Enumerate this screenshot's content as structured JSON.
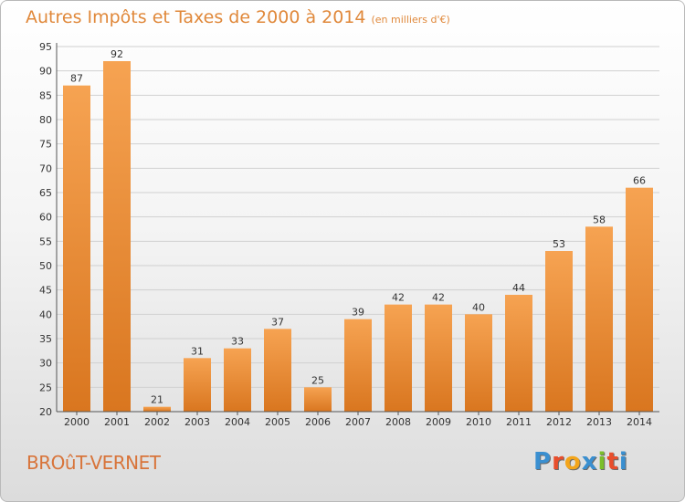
{
  "header": {
    "title": "Autres Impôts et Taxes de 2000 à 2014",
    "subtitle": "(en milliers d'€)"
  },
  "footer": {
    "place": "BROûT-VERNET",
    "logo_letters": [
      "P",
      "r",
      "o",
      "x",
      "i",
      "t",
      "i"
    ],
    "logo_colors": [
      "#3a8fd0",
      "#e84e2c",
      "#f3a51b",
      "#3a8fd0",
      "#7bbf2a",
      "#e84e2c",
      "#3a8fd0"
    ]
  },
  "colors": {
    "bar_light": "#f6a352",
    "bar_dark": "#d9761f",
    "text": "#333333",
    "grid": "#d0d0d0"
  },
  "chart_data": {
    "type": "bar",
    "title": "Autres Impôts et Taxes de 2000 à 2014",
    "subtitle": "(en milliers d'€)",
    "categories": [
      "2000",
      "2001",
      "2002",
      "2003",
      "2004",
      "2005",
      "2006",
      "2007",
      "2008",
      "2009",
      "2010",
      "2011",
      "2012",
      "2013",
      "2014"
    ],
    "values": [
      87,
      92,
      21,
      31,
      33,
      37,
      25,
      39,
      42,
      42,
      40,
      44,
      53,
      58,
      66
    ],
    "ylim": [
      20,
      95
    ],
    "yticks": [
      20,
      25,
      30,
      35,
      40,
      45,
      50,
      55,
      60,
      65,
      70,
      75,
      80,
      85,
      90,
      95
    ],
    "grid": true
  }
}
